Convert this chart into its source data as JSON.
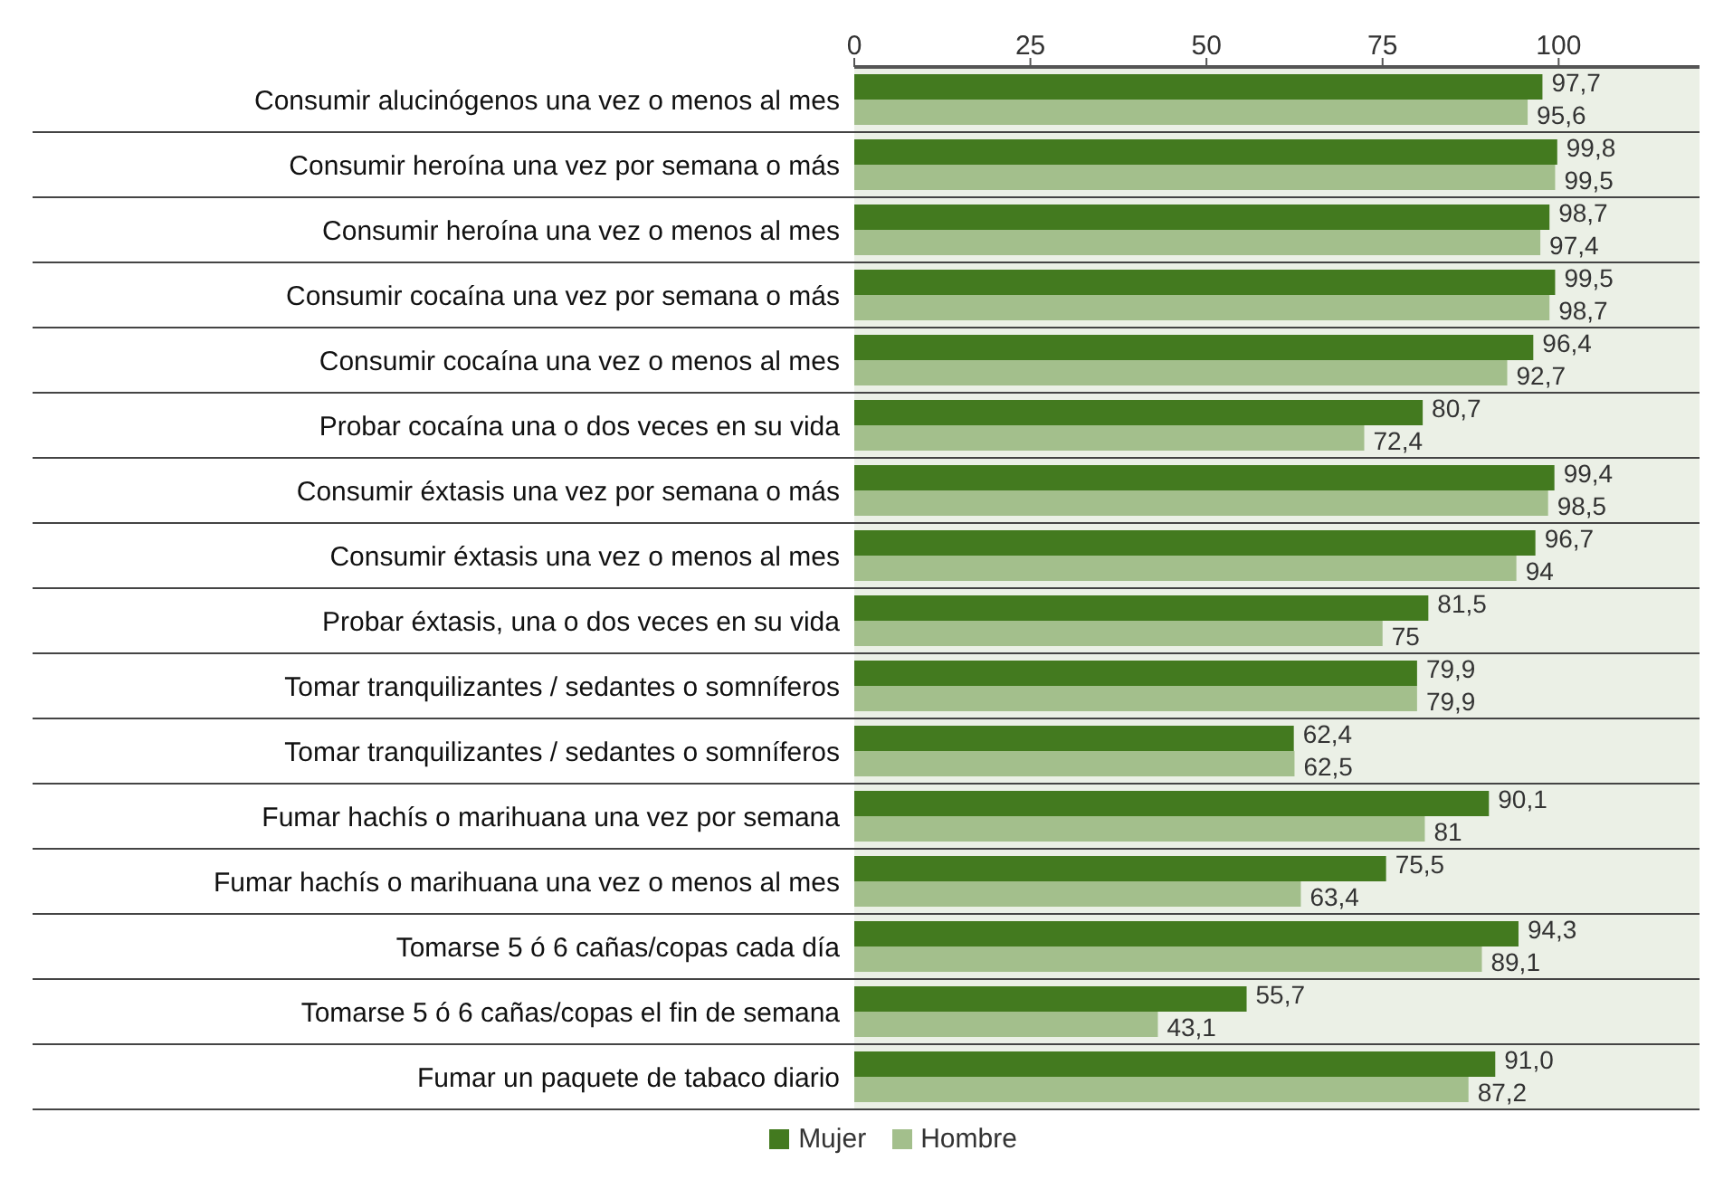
{
  "chart_data": {
    "type": "bar",
    "orientation": "horizontal",
    "categories": [
      "Consumir alucinógenos una vez o menos al mes",
      "Consumir heroína una vez por semana o más",
      "Consumir heroína una vez o menos al mes",
      "Consumir cocaína una vez por semana o más",
      "Consumir cocaína una vez o menos al mes",
      "Probar cocaína una o dos veces en su vida",
      "Consumir éxtasis una vez por semana o más",
      "Consumir éxtasis una vez o menos al mes",
      "Probar éxtasis, una o dos veces en su vida",
      "Tomar tranquilizantes / sedantes o somníferos",
      "Tomar tranquilizantes / sedantes o somníferos",
      "Fumar hachís o marihuana una vez por semana",
      "Fumar hachís o marihuana una vez o menos al mes",
      "Tomarse 5 ó 6 cañas/copas cada día",
      "Tomarse 5 ó 6 cañas/copas el fin de semana",
      "Fumar un paquete de tabaco diario"
    ],
    "series": [
      {
        "name": "Mujer",
        "color": "#437a1f",
        "values": [
          97.7,
          99.8,
          98.7,
          99.5,
          96.4,
          80.7,
          99.4,
          96.7,
          81.5,
          79.9,
          62.4,
          90.1,
          75.5,
          94.3,
          55.7,
          91.0
        ],
        "value_labels": [
          "97,7",
          "99,8",
          "98,7",
          "99,5",
          "96,4",
          "80,7",
          "99,4",
          "96,7",
          "81,5",
          "79,9",
          "62,4",
          "90,1",
          "75,5",
          "94,3",
          "55,7",
          "91,0"
        ]
      },
      {
        "name": "Hombre",
        "color": "#a3bf8c",
        "values": [
          95.6,
          99.5,
          97.4,
          98.7,
          92.7,
          72.4,
          98.5,
          94,
          75,
          79.9,
          62.5,
          81,
          63.4,
          89.1,
          43.1,
          87.2
        ],
        "value_labels": [
          "95,6",
          "99,5",
          "97,4",
          "98,7",
          "92,7",
          "72,4",
          "98,5",
          "94",
          "75",
          "79,9",
          "62,5",
          "81",
          "63,4",
          "89,1",
          "43,1",
          "87,2"
        ]
      }
    ],
    "xlim": [
      0,
      120
    ],
    "xticks": [
      0,
      25,
      50,
      75,
      100
    ],
    "grid": "y",
    "legend": "bottom"
  }
}
